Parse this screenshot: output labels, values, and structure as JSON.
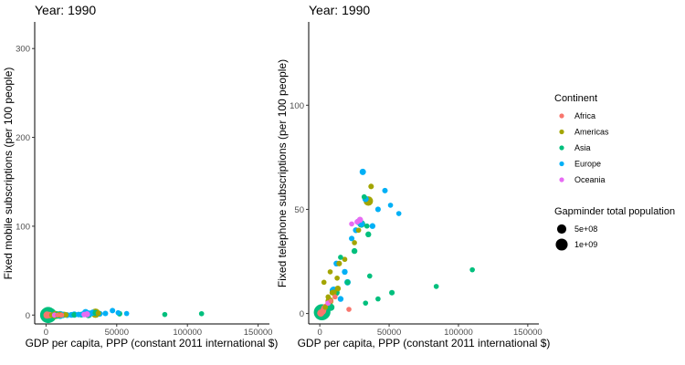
{
  "chart_data": [
    {
      "type": "scatter",
      "title": "Year: 1990",
      "xlabel": "GDP per capita, PPP (constant 2011 international $)",
      "ylabel": "Fixed mobile subscriptions (per 100 people)",
      "xlim": [
        -8000,
        158000
      ],
      "ylim": [
        -10,
        330
      ],
      "xticks": [
        0,
        50000,
        100000,
        150000
      ],
      "yticks": [
        0,
        100,
        200,
        300
      ],
      "grid": false,
      "series": [
        {
          "name": "Africa",
          "color": "#F8766D",
          "points": [
            [
              1500,
              0,
              0.03
            ],
            [
              2500,
              0,
              0.05
            ],
            [
              1200,
              0,
              0.02
            ],
            [
              3000,
              0,
              0.04
            ],
            [
              4000,
              0,
              0.02
            ],
            [
              6000,
              0,
              0.03
            ],
            [
              8000,
              0,
              0.01
            ],
            [
              11000,
              0,
              0.02
            ],
            [
              700,
              0,
              0.1
            ],
            [
              2200,
              0,
              0.06
            ]
          ]
        },
        {
          "name": "Americas",
          "color": "#A3A500",
          "points": [
            [
              7000,
              0.1,
              0.15
            ],
            [
              10000,
              0.3,
              0.05
            ],
            [
              13000,
              0.5,
              0.04
            ],
            [
              35000,
              2.1,
              0.25
            ],
            [
              37000,
              2.0,
              0.03
            ],
            [
              6000,
              0.1,
              0.02
            ],
            [
              9000,
              0.1,
              0.03
            ],
            [
              14000,
              0.2,
              0.03
            ],
            [
              4000,
              0,
              0.02
            ]
          ]
        },
        {
          "name": "Asia",
          "color": "#00BF7D",
          "points": [
            [
              1500,
              0,
              1.14
            ],
            [
              2500,
              0,
              0.85
            ],
            [
              3000,
              0,
              0.2
            ],
            [
              8000,
              0,
              0.1
            ],
            [
              12000,
              0.1,
              0.06
            ],
            [
              30000,
              0.7,
              0.12
            ],
            [
              35000,
              2.5,
              0.04
            ],
            [
              25000,
              0.5,
              0.04
            ],
            [
              52000,
              1.5,
              0.03
            ],
            [
              84000,
              0.6,
              0.02
            ],
            [
              110000,
              1.5,
              0.02
            ],
            [
              20000,
              0.3,
              0.03
            ]
          ]
        },
        {
          "name": "Europe",
          "color": "#00B0F6",
          "points": [
            [
              28000,
              3.0,
              0.08
            ],
            [
              30000,
              1.7,
              0.06
            ],
            [
              31000,
              1.5,
              0.06
            ],
            [
              33000,
              2.6,
              0.06
            ],
            [
              26000,
              0.8,
              0.04
            ],
            [
              10000,
              0.1,
              0.15
            ],
            [
              15000,
              0,
              0.04
            ],
            [
              20000,
              0.5,
              0.06
            ],
            [
              38000,
              1.5,
              0.04
            ],
            [
              42000,
              1.8,
              0.03
            ],
            [
              47000,
              5.0,
              0.03
            ],
            [
              51000,
              2.6,
              0.02
            ],
            [
              57000,
              1.7,
              0.02
            ],
            [
              23000,
              0.6,
              0.03
            ],
            [
              18000,
              0.2,
              0.04
            ],
            [
              12000,
              0.1,
              0.04
            ]
          ]
        },
        {
          "name": "Oceania",
          "color": "#E76BF3",
          "points": [
            [
              29000,
              0.9,
              0.05
            ],
            [
              27000,
              0.6,
              0.03
            ],
            [
              6000,
              0,
              0.02
            ]
          ]
        }
      ]
    },
    {
      "type": "scatter",
      "title": "Year: 1990",
      "xlabel": "GDP per capita, PPP (constant 2011 international $)",
      "ylabel": "Fixed telephone subscriptions (per 100 people)",
      "xlim": [
        -8000,
        158000
      ],
      "ylim": [
        -5,
        140
      ],
      "xticks": [
        0,
        50000,
        100000,
        150000
      ],
      "yticks": [
        0,
        50,
        100
      ],
      "grid": false,
      "series": [
        {
          "name": "Africa",
          "color": "#F8766D",
          "points": [
            [
              1500,
              0.6,
              0.03
            ],
            [
              2500,
              1.5,
              0.05
            ],
            [
              1200,
              0.4,
              0.02
            ],
            [
              3000,
              2.5,
              0.04
            ],
            [
              4000,
              3.5,
              0.02
            ],
            [
              6000,
              5.0,
              0.03
            ],
            [
              8000,
              6.0,
              0.01
            ],
            [
              11000,
              8.0,
              0.02
            ],
            [
              700,
              0.2,
              0.1
            ],
            [
              2200,
              1.0,
              0.06
            ],
            [
              21000,
              2.0,
              0.02
            ]
          ]
        },
        {
          "name": "Americas",
          "color": "#A3A500",
          "points": [
            [
              7000,
              6.0,
              0.15
            ],
            [
              10000,
              10.0,
              0.05
            ],
            [
              13000,
              12.0,
              0.04
            ],
            [
              35000,
              54.0,
              0.25
            ],
            [
              37000,
              61.0,
              0.03
            ],
            [
              6000,
              8.0,
              0.02
            ],
            [
              9000,
              10.0,
              0.03
            ],
            [
              14000,
              24.0,
              0.03
            ],
            [
              4000,
              3.0,
              0.02
            ],
            [
              3000,
              15.0,
              0.02
            ],
            [
              7500,
              20.0,
              0.02
            ],
            [
              12500,
              17.0,
              0.02
            ],
            [
              18000,
              26.0,
              0.02
            ],
            [
              25000,
              34.0,
              0.02
            ],
            [
              28000,
              40.0,
              0.02
            ]
          ]
        },
        {
          "name": "Asia",
          "color": "#00BF7D",
          "points": [
            [
              1500,
              0.6,
              1.14
            ],
            [
              2500,
              0.7,
              0.85
            ],
            [
              3000,
              1.5,
              0.2
            ],
            [
              8000,
              3.0,
              0.1
            ],
            [
              12000,
              10.0,
              0.06
            ],
            [
              30000,
              43.0,
              0.12
            ],
            [
              35000,
              38.0,
              0.04
            ],
            [
              25000,
              30.0,
              0.04
            ],
            [
              52000,
              10.0,
              0.03
            ],
            [
              84000,
              13.0,
              0.02
            ],
            [
              110000,
              21.0,
              0.02
            ],
            [
              20000,
              15.0,
              0.03
            ],
            [
              32000,
              56.0,
              0.02
            ],
            [
              34000,
              42.0,
              0.02
            ],
            [
              42000,
              7.0,
              0.02
            ],
            [
              33000,
              5.0,
              0.02
            ],
            [
              36000,
              18.0,
              0.02
            ],
            [
              15000,
              27.0,
              0.02
            ]
          ]
        },
        {
          "name": "Europe",
          "color": "#00B0F6",
          "points": [
            [
              28000,
              44.0,
              0.08
            ],
            [
              30000,
              43.0,
              0.06
            ],
            [
              31000,
              68.0,
              0.06
            ],
            [
              33000,
              55.0,
              0.06
            ],
            [
              26000,
              40.0,
              0.04
            ],
            [
              10000,
              11.0,
              0.15
            ],
            [
              15000,
              7.0,
              0.04
            ],
            [
              20000,
              15.0,
              0.06
            ],
            [
              38000,
              42.0,
              0.04
            ],
            [
              42000,
              50.0,
              0.03
            ],
            [
              47000,
              59.0,
              0.03
            ],
            [
              51000,
              52.0,
              0.02
            ],
            [
              57000,
              48.0,
              0.02
            ],
            [
              23000,
              36.0,
              0.03
            ],
            [
              18000,
              20.0,
              0.04
            ],
            [
              12000,
              24.0,
              0.04
            ]
          ]
        },
        {
          "name": "Oceania",
          "color": "#E76BF3",
          "points": [
            [
              29000,
              45.0,
              0.05
            ],
            [
              27000,
              44.0,
              0.03
            ],
            [
              6000,
              5.0,
              0.02
            ],
            [
              23000,
              43.0,
              0.02
            ]
          ]
        }
      ]
    }
  ],
  "legend": {
    "color_title": "Continent",
    "items": [
      {
        "label": "Africa",
        "color": "#F8766D"
      },
      {
        "label": "Americas",
        "color": "#A3A500"
      },
      {
        "label": "Asia",
        "color": "#00BF7D"
      },
      {
        "label": "Europe",
        "color": "#00B0F6"
      },
      {
        "label": "Oceania",
        "color": "#E76BF3"
      }
    ],
    "size_title": "Gapminder total population",
    "size_items": [
      {
        "label": "5e+08",
        "value": 0.5
      },
      {
        "label": "1e+09",
        "value": 1.0
      }
    ]
  }
}
